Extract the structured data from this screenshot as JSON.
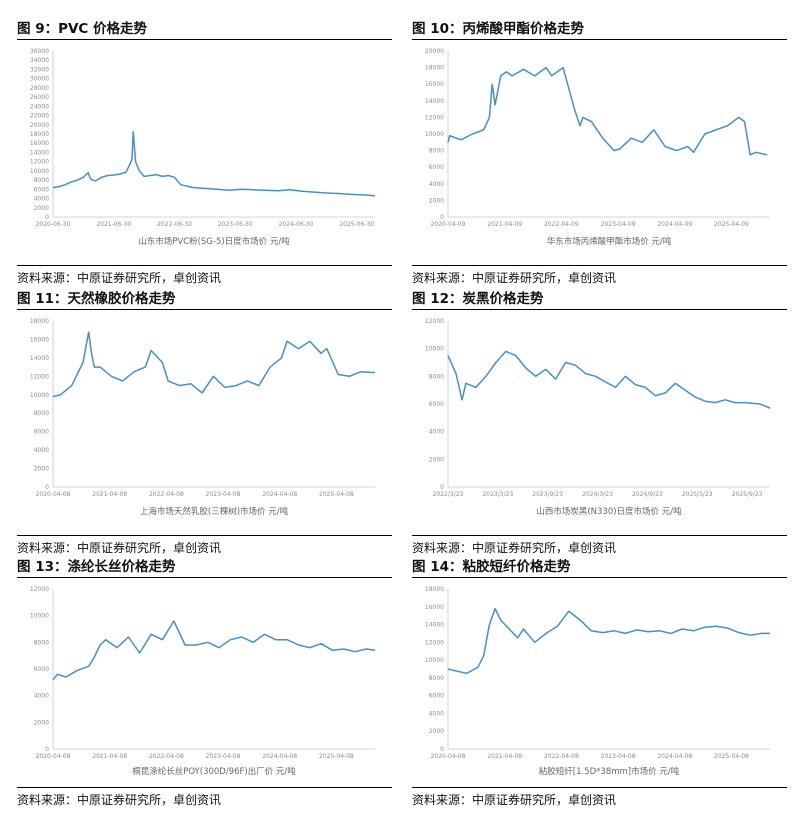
{
  "source_text": "资料来源：中原证券研究所，卓创资讯",
  "line_color": "#4a8fbd",
  "chart_data": [
    {
      "id": "pvc",
      "title": "图 9：PVC 价格走势",
      "type": "line",
      "series_caption": "山东市场PVC粉(SG-5)日度市场价 元/吨",
      "ylim": [
        0,
        36000
      ],
      "yticks": [
        0,
        2000,
        4000,
        6000,
        8000,
        10000,
        12000,
        14000,
        16000,
        18000,
        20000,
        22000,
        24000,
        26000,
        28000,
        30000,
        32000,
        34000,
        36000
      ],
      "ytick_labels": [
        "0",
        "2000",
        "4000",
        "6000",
        "8000",
        "10000",
        "12000",
        "14000",
        "16000",
        "18000",
        "20000",
        "22000",
        "24000",
        "26000",
        "28000",
        "30000",
        "32000",
        "34000",
        "36000"
      ],
      "xlim": [
        2020.5,
        2025.8
      ],
      "xticks": [
        2020.5,
        2021.5,
        2022.5,
        2023.5,
        2024.5,
        2025.5
      ],
      "xtick_labels": [
        "2020-06-30",
        "2021-06-30",
        "2022-06-30",
        "2023-06-30",
        "2024-06-30",
        "2025-06-30"
      ],
      "series": [
        {
          "x": [
            2020.5,
            2020.6,
            2020.7,
            2020.8,
            2020.9,
            2021.0,
            2021.08,
            2021.12,
            2021.2,
            2021.3,
            2021.4,
            2021.5,
            2021.6,
            2021.7,
            2021.75,
            2021.8,
            2021.82,
            2021.86,
            2021.92,
            2022.0,
            2022.1,
            2022.2,
            2022.3,
            2022.4,
            2022.5,
            2022.6,
            2022.8,
            2023.0,
            2023.2,
            2023.4,
            2023.6,
            2023.8,
            2024.0,
            2024.2,
            2024.4,
            2024.6,
            2024.8,
            2025.0,
            2025.2,
            2025.4,
            2025.6,
            2025.8
          ],
          "y": [
            6400,
            6600,
            7000,
            7600,
            8000,
            8600,
            9600,
            8200,
            7800,
            8600,
            9000,
            9100,
            9300,
            9700,
            11000,
            12500,
            18500,
            12000,
            10000,
            8800,
            9000,
            9200,
            8800,
            9000,
            8600,
            7000,
            6400,
            6200,
            6000,
            5800,
            6000,
            5900,
            5800,
            5700,
            5900,
            5600,
            5400,
            5200,
            5100,
            4900,
            4800,
            4600
          ]
        }
      ]
    },
    {
      "id": "acrylic",
      "title": "图 10：丙烯酸甲酯价格走势",
      "type": "line",
      "series_caption": "华东市场丙烯酸甲酯市场价 元/吨",
      "ylim": [
        0,
        20000
      ],
      "yticks": [
        0,
        2000,
        4000,
        6000,
        8000,
        10000,
        12000,
        14000,
        16000,
        18000,
        20000
      ],
      "ytick_labels": [
        "0",
        "2000",
        "4000",
        "6000",
        "8000",
        "10000",
        "12000",
        "14000",
        "16000",
        "18000",
        "20000"
      ],
      "xlim": [
        2020.27,
        2025.95
      ],
      "xticks": [
        2020.27,
        2021.27,
        2022.27,
        2023.27,
        2024.27,
        2025.27
      ],
      "xtick_labels": [
        "2020-04-09",
        "2021-04-09",
        "2022-04-09",
        "2023-04-09",
        "2024-04-09",
        "2025-04-09"
      ],
      "series": [
        {
          "x": [
            2020.27,
            2020.3,
            2020.5,
            2020.7,
            2020.9,
            2021.0,
            2021.05,
            2021.1,
            2021.2,
            2021.3,
            2021.4,
            2021.6,
            2021.8,
            2022.0,
            2022.1,
            2022.3,
            2022.5,
            2022.6,
            2022.65,
            2022.8,
            2023.0,
            2023.2,
            2023.3,
            2023.5,
            2023.7,
            2023.9,
            2024.1,
            2024.3,
            2024.5,
            2024.6,
            2024.8,
            2025.0,
            2025.2,
            2025.4,
            2025.5,
            2025.6,
            2025.7,
            2025.9
          ],
          "y": [
            9000,
            9800,
            9300,
            10000,
            10500,
            12000,
            16000,
            13500,
            17000,
            17500,
            17000,
            17800,
            17000,
            18000,
            17000,
            18000,
            13000,
            11000,
            12000,
            11500,
            9500,
            8000,
            8200,
            9500,
            9000,
            10500,
            8500,
            8000,
            8500,
            7800,
            10000,
            10500,
            11000,
            12000,
            11500,
            7500,
            7800,
            7500
          ]
        }
      ]
    },
    {
      "id": "rubber",
      "title": "图 11：天然橡胶价格走势",
      "type": "line",
      "series_caption": "上海市场天然乳胶(三棵树)市场价 元/吨",
      "ylim": [
        0,
        18000
      ],
      "yticks": [
        0,
        2000,
        4000,
        6000,
        8000,
        10000,
        12000,
        14000,
        16000,
        18000
      ],
      "ytick_labels": [
        "0",
        "2000",
        "4000",
        "6000",
        "8000",
        "10000",
        "12000",
        "14000",
        "16000",
        "18000"
      ],
      "xlim": [
        2020.27,
        2025.95
      ],
      "xticks": [
        2020.27,
        2021.27,
        2022.27,
        2023.27,
        2024.27,
        2025.27
      ],
      "xtick_labels": [
        "2020-04-08",
        "2021-04-08",
        "2022-04-08",
        "2023-04-08",
        "2024-04-08",
        "2025-04-08"
      ],
      "series": [
        {
          "x": [
            2020.27,
            2020.4,
            2020.6,
            2020.8,
            2020.9,
            2020.95,
            2021.0,
            2021.1,
            2021.3,
            2021.5,
            2021.7,
            2021.9,
            2022.0,
            2022.2,
            2022.3,
            2022.5,
            2022.7,
            2022.9,
            2023.1,
            2023.3,
            2023.5,
            2023.7,
            2023.9,
            2024.1,
            2024.3,
            2024.4,
            2024.6,
            2024.8,
            2025.0,
            2025.1,
            2025.3,
            2025.5,
            2025.7,
            2025.95
          ],
          "y": [
            9800,
            10000,
            11000,
            13500,
            16800,
            14500,
            13000,
            13000,
            12000,
            11500,
            12500,
            13000,
            14800,
            13500,
            11500,
            11000,
            11200,
            10200,
            12000,
            10800,
            11000,
            11500,
            11000,
            13000,
            14000,
            15800,
            15000,
            15800,
            14500,
            15000,
            12200,
            12000,
            12500,
            12400
          ]
        }
      ]
    },
    {
      "id": "carbon_black",
      "title": "图 12：炭黑价格走势",
      "type": "line",
      "series_caption": "山西市场炭黑(N330)日度市场价 元/吨",
      "ylim": [
        0,
        12000
      ],
      "yticks": [
        0,
        2000,
        4000,
        6000,
        8000,
        10000,
        12000
      ],
      "ytick_labels": [
        "0",
        "2000",
        "4000",
        "6000",
        "8000",
        "10000",
        "12000"
      ],
      "xlim": [
        2022.72,
        2025.95
      ],
      "xticks": [
        2022.72,
        2023.22,
        2023.72,
        2024.22,
        2024.72,
        2025.22,
        2025.72
      ],
      "xtick_labels": [
        "2022/3/23",
        "2023/3/23",
        "2023/9/23",
        "2024/3/23",
        "2024/9/23",
        "2025/3/23",
        "2025/9/23"
      ],
      "series": [
        {
          "x": [
            2022.72,
            2022.8,
            2022.86,
            2022.9,
            2023.0,
            2023.1,
            2023.2,
            2023.3,
            2023.4,
            2023.5,
            2023.6,
            2023.7,
            2023.8,
            2023.9,
            2024.0,
            2024.1,
            2024.2,
            2024.3,
            2024.4,
            2024.5,
            2024.6,
            2024.7,
            2024.8,
            2024.9,
            2025.0,
            2025.1,
            2025.2,
            2025.3,
            2025.4,
            2025.5,
            2025.6,
            2025.7,
            2025.85,
            2025.95
          ],
          "y": [
            9500,
            8200,
            6300,
            7500,
            7200,
            8000,
            9000,
            9800,
            9500,
            8600,
            8000,
            8500,
            7800,
            9000,
            8800,
            8200,
            8000,
            7600,
            7200,
            8000,
            7400,
            7200,
            6600,
            6800,
            7500,
            7000,
            6500,
            6200,
            6100,
            6300,
            6100,
            6100,
            6000,
            5700
          ]
        }
      ]
    },
    {
      "id": "polyester",
      "title": "图 13：涤纶长丝价格走势",
      "type": "line",
      "series_caption": "桐昆涤纶长丝POY(300D/96F)出厂价 元/吨",
      "ylim": [
        0,
        12000
      ],
      "yticks": [
        0,
        2000,
        4000,
        6000,
        8000,
        10000,
        12000
      ],
      "ytick_labels": [
        "0",
        "2000",
        "4000",
        "6000",
        "8000",
        "10000",
        "12000"
      ],
      "xlim": [
        2020.27,
        2025.95
      ],
      "xticks": [
        2020.27,
        2021.27,
        2022.27,
        2023.27,
        2024.27,
        2025.27
      ],
      "xtick_labels": [
        "2020-04-08",
        "2021-04-08",
        "2022-04-08",
        "2023-04-08",
        "2024-04-08",
        "2025-04-08"
      ],
      "series": [
        {
          "x": [
            2020.27,
            2020.35,
            2020.5,
            2020.7,
            2020.9,
            2021.0,
            2021.1,
            2021.2,
            2021.4,
            2021.6,
            2021.8,
            2022.0,
            2022.2,
            2022.4,
            2022.6,
            2022.8,
            2023.0,
            2023.2,
            2023.4,
            2023.6,
            2023.8,
            2024.0,
            2024.2,
            2024.4,
            2024.6,
            2024.8,
            2025.0,
            2025.2,
            2025.4,
            2025.6,
            2025.8,
            2025.95
          ],
          "y": [
            5200,
            5600,
            5400,
            5900,
            6200,
            6900,
            7800,
            8200,
            7600,
            8400,
            7200,
            8600,
            8200,
            9600,
            7800,
            7800,
            8000,
            7600,
            8200,
            8400,
            8000,
            8600,
            8200,
            8200,
            7800,
            7600,
            7900,
            7400,
            7500,
            7300,
            7500,
            7400
          ]
        }
      ]
    },
    {
      "id": "viscose",
      "title": "图 14：粘胶短纤价格走势",
      "type": "line",
      "series_caption": "粘胶短纤[1.5D*38mm]市场价 元/吨",
      "ylim": [
        0,
        18000
      ],
      "yticks": [
        0,
        2000,
        4000,
        6000,
        8000,
        10000,
        12000,
        14000,
        16000,
        18000
      ],
      "ytick_labels": [
        "0",
        "2000",
        "4000",
        "6000",
        "8000",
        "10000",
        "12000",
        "14000",
        "16000",
        "18000"
      ],
      "xlim": [
        2020.27,
        2025.95
      ],
      "xticks": [
        2020.27,
        2021.27,
        2022.27,
        2023.27,
        2024.27,
        2025.27
      ],
      "xtick_labels": [
        "2020-04-08",
        "2021-04-08",
        "2022-04-08",
        "2023-04-08",
        "2024-04-08",
        "2025-04-08"
      ],
      "series": [
        {
          "x": [
            2020.27,
            2020.4,
            2020.6,
            2020.8,
            2020.9,
            2021.0,
            2021.1,
            2021.2,
            2021.35,
            2021.5,
            2021.6,
            2021.8,
            2022.0,
            2022.2,
            2022.4,
            2022.6,
            2022.8,
            2023.0,
            2023.2,
            2023.4,
            2023.6,
            2023.8,
            2024.0,
            2024.2,
            2024.4,
            2024.6,
            2024.8,
            2025.0,
            2025.2,
            2025.4,
            2025.6,
            2025.8,
            2025.95
          ],
          "y": [
            9000,
            8800,
            8500,
            9200,
            10500,
            14000,
            15800,
            14500,
            13500,
            12500,
            13500,
            12000,
            13000,
            13800,
            15500,
            14500,
            13300,
            13100,
            13300,
            13000,
            13400,
            13200,
            13300,
            13000,
            13500,
            13300,
            13700,
            13800,
            13600,
            13100,
            12800,
            13000,
            13000
          ]
        }
      ]
    }
  ]
}
